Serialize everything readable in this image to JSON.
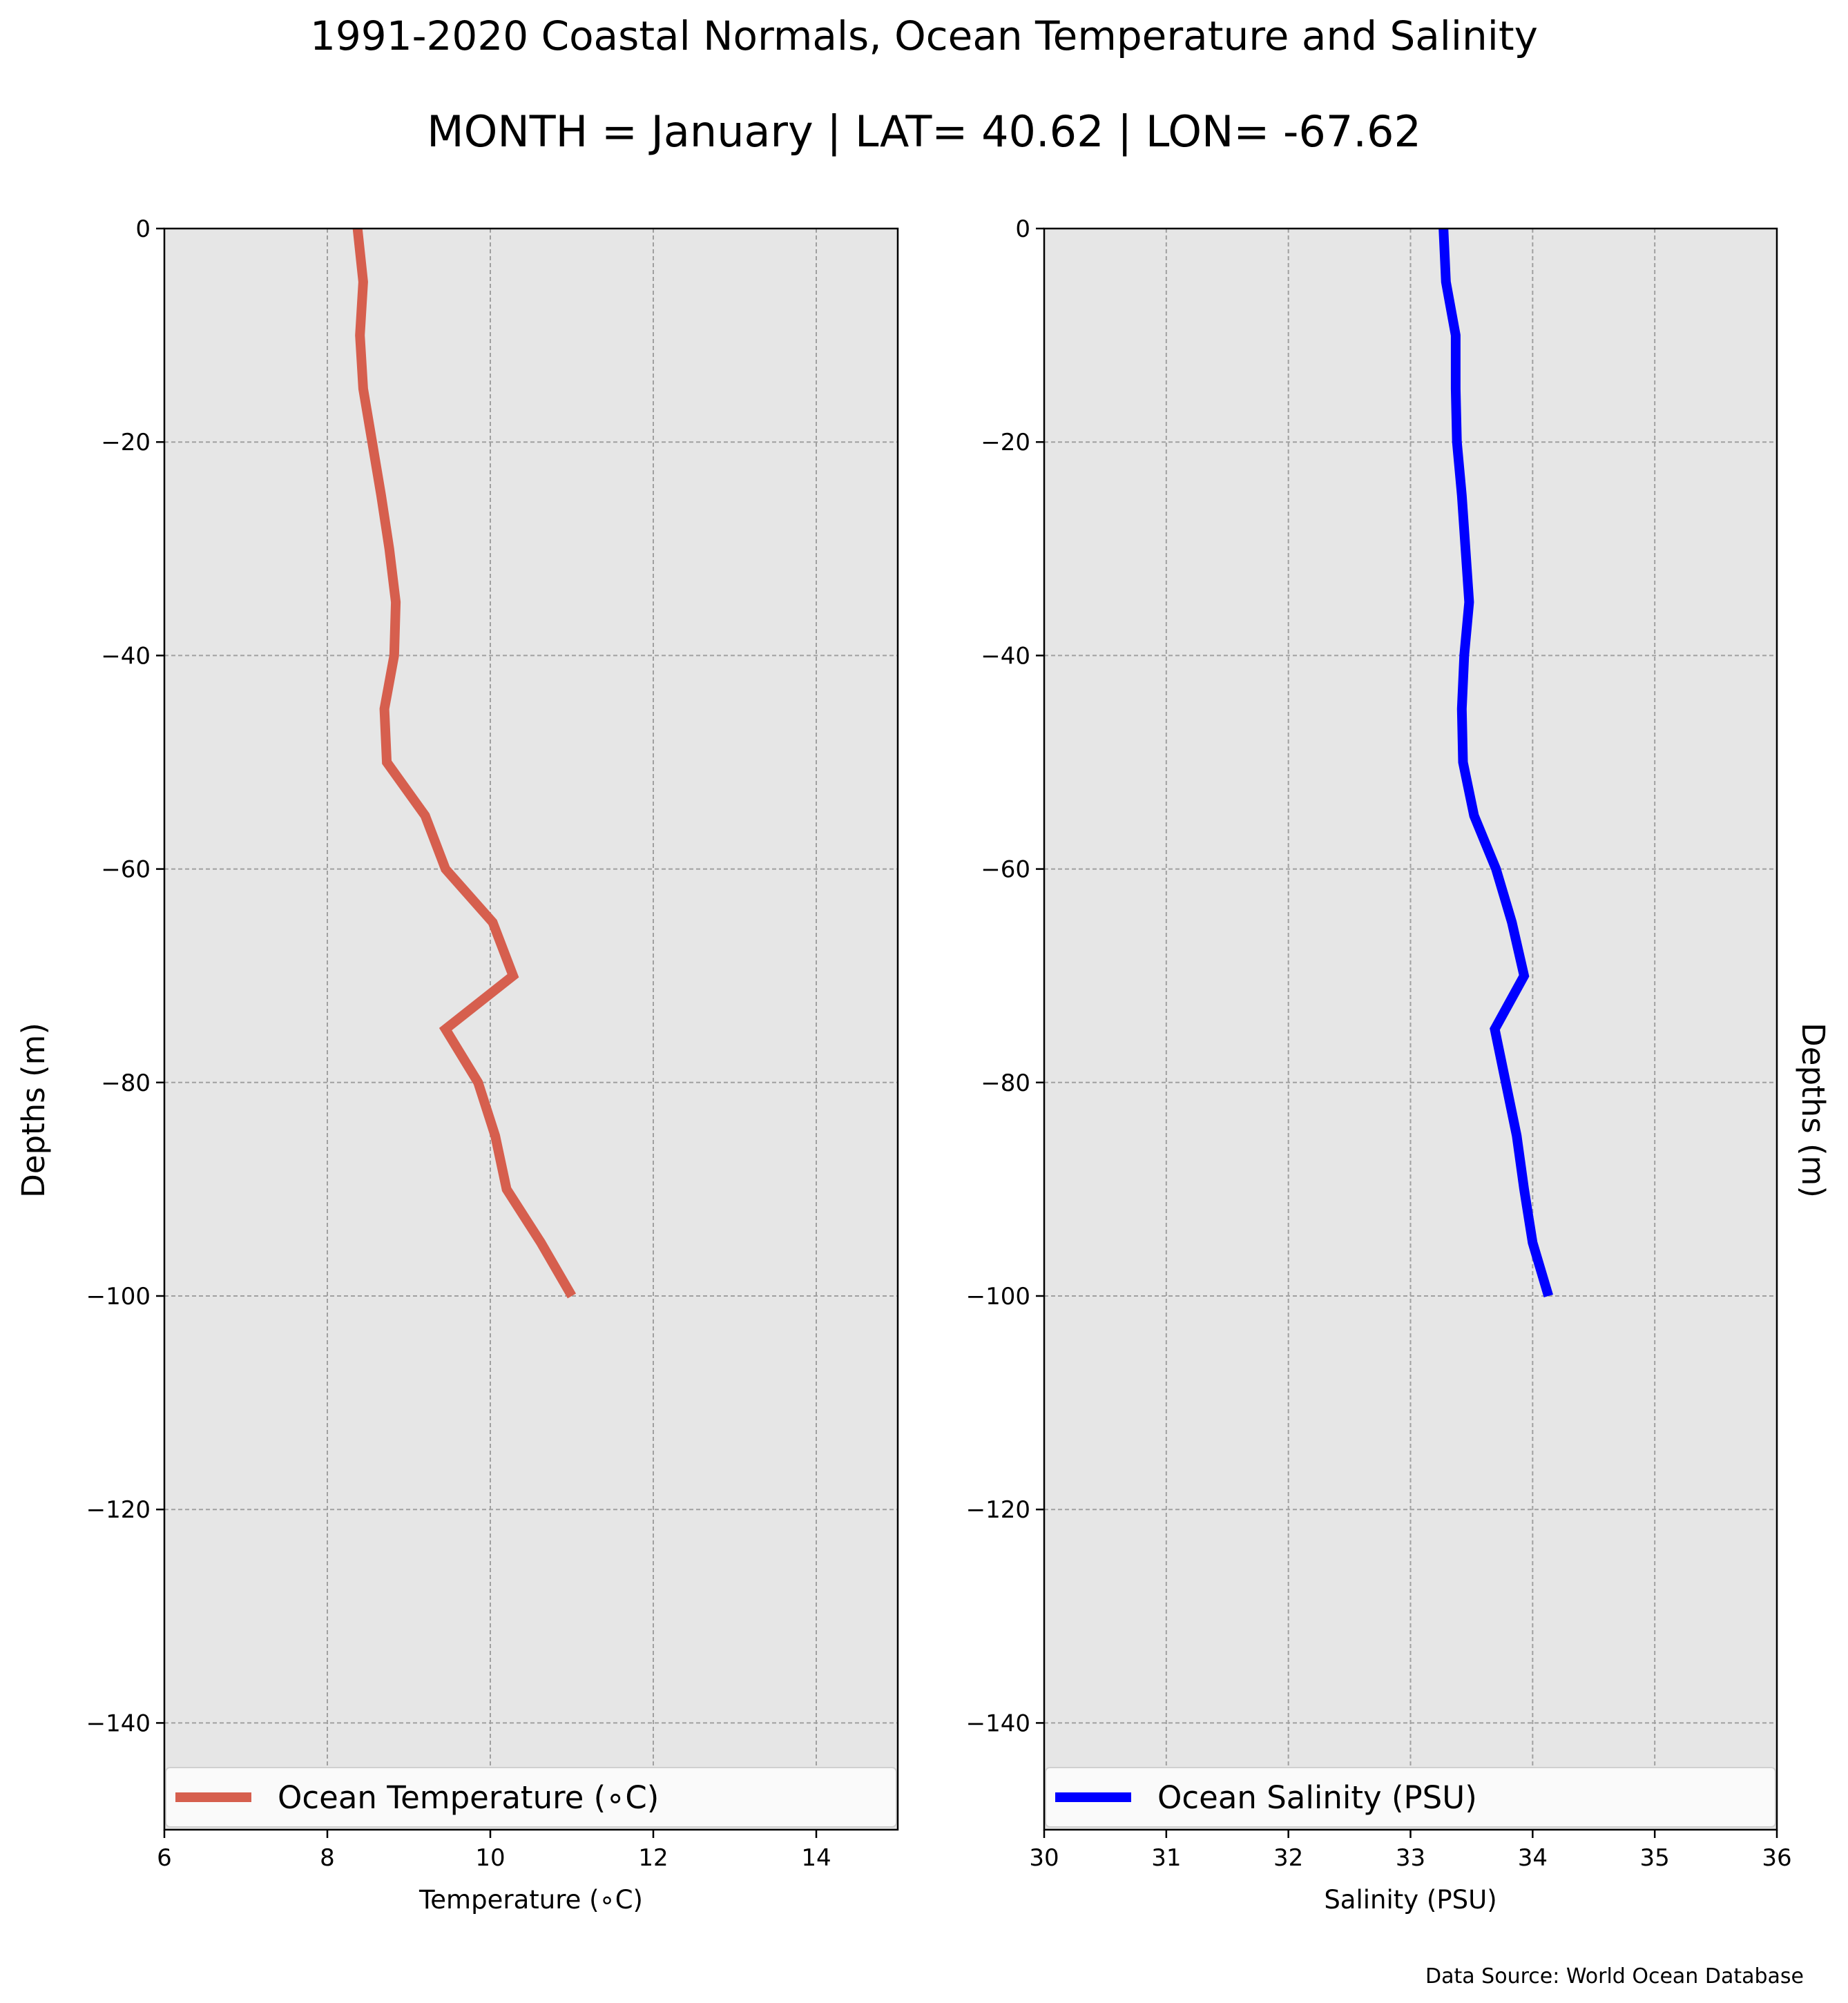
{
  "title": "1991-2020 Coastal Normals, Ocean Temperature and Salinity",
  "subtitle": "MONTH = January | LAT= 40.62 | LON= -67.62",
  "source": "Data Source: World Ocean Database",
  "chart_data": [
    {
      "type": "line",
      "xlabel": "Temperature (∘C)",
      "ylabel": "Depths (m)",
      "xlim": [
        6,
        15
      ],
      "ylim": [
        -150,
        0
      ],
      "xticks": [
        6,
        8,
        10,
        12,
        14
      ],
      "yticks": [
        0,
        -20,
        -40,
        -60,
        -80,
        -100,
        -120,
        -140
      ],
      "grid": true,
      "legend_position": "bottom",
      "background": "#e6e6e6",
      "series": [
        {
          "name": "Ocean Temperature (∘C)",
          "color": "#d65f4e",
          "x": [
            8.37,
            8.44,
            8.4,
            8.44,
            8.55,
            8.66,
            8.76,
            8.84,
            8.82,
            8.7,
            8.73,
            9.2,
            9.45,
            10.03,
            10.28,
            9.45,
            9.85,
            10.06,
            10.2,
            10.62,
            11.0
          ],
          "y": [
            0,
            -5,
            -10,
            -15,
            -20,
            -25,
            -30,
            -35,
            -40,
            -45,
            -50,
            -55,
            -60,
            -65,
            -70,
            -75,
            -80,
            -85,
            -90,
            -95,
            -100
          ]
        }
      ]
    },
    {
      "type": "line",
      "xlabel": "Salinity (PSU)",
      "ylabel": "Depths (m)",
      "xlim": [
        30,
        36
      ],
      "ylim": [
        -150,
        0
      ],
      "xticks": [
        30,
        31,
        32,
        33,
        34,
        35,
        36
      ],
      "yticks": [
        0,
        -20,
        -40,
        -60,
        -80,
        -100,
        -120,
        -140
      ],
      "grid": true,
      "legend_position": "bottom",
      "background": "#e6e6e6",
      "series": [
        {
          "name": "Ocean Salinity (PSU)",
          "color": "#0000ff",
          "x": [
            33.27,
            33.29,
            33.37,
            33.37,
            33.38,
            33.42,
            33.45,
            33.48,
            33.44,
            33.42,
            33.43,
            33.52,
            33.7,
            33.83,
            33.93,
            33.69,
            33.78,
            33.87,
            33.93,
            34.0,
            34.13
          ],
          "y": [
            0,
            -5,
            -10,
            -15,
            -20,
            -25,
            -30,
            -35,
            -40,
            -45,
            -50,
            -55,
            -60,
            -65,
            -70,
            -75,
            -80,
            -85,
            -90,
            -95,
            -100
          ]
        }
      ]
    }
  ]
}
